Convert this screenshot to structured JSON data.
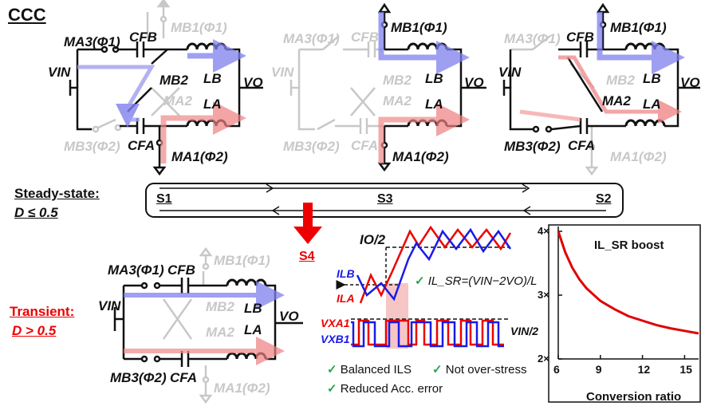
{
  "title": "CCC",
  "steady_state": {
    "line1": "Steady-state:",
    "line2": "D ≤ 0.5"
  },
  "transient": {
    "line1": "Transient:",
    "line2": "D > 0.5"
  },
  "states": [
    "S1",
    "S3",
    "S2",
    "S4"
  ],
  "components": {
    "v_in": "VIN",
    "v_o": "VO",
    "l_a": "LA",
    "l_b": "LB",
    "c_fa": "CFA",
    "c_fb": "CFB",
    "m_a1": "MA1(Φ2)",
    "m_a2": "MA2",
    "m_a3": "MA3(Φ1)",
    "m_b1": "MB1(Φ1)",
    "m_b2": "MB2",
    "m_b3": "MB3(Φ2)"
  },
  "waveform": {
    "io_half": "IO/2",
    "i_lb": "ILB",
    "i_la": "ILA",
    "formula": "IL_SR=(VIN−2VO)/L",
    "v_xa1": "VXA1",
    "v_xb1": "VXB1",
    "vin_half": "VIN/2"
  },
  "benefits": [
    "Balanced ILS",
    "Not over-stress",
    "Reduced Acc. error"
  ],
  "chart_data": {
    "type": "line",
    "title": "IL_SR boost",
    "xlabel": "Conversion ratio",
    "ylabel": "",
    "x_ticks": [
      "6",
      "9",
      "12",
      "15"
    ],
    "y_ticks": [
      "2×",
      "3×",
      "4×"
    ],
    "xlim": [
      6,
      16
    ],
    "ylim": [
      2,
      4
    ],
    "series": [
      {
        "x": [
          6,
          6.5,
          7,
          7.5,
          8,
          9,
          10,
          11,
          12,
          13,
          14,
          15,
          16
        ],
        "values": [
          4.0,
          3.67,
          3.43,
          3.25,
          3.11,
          2.91,
          2.78,
          2.67,
          2.6,
          2.53,
          2.48,
          2.44,
          2.4
        ],
        "color": "#e00000"
      }
    ],
    "grid": false
  },
  "colors": {
    "blue": "#1a1ae6",
    "red": "#e00000",
    "grey": "#c8c8c8",
    "check": "#22a84a"
  }
}
